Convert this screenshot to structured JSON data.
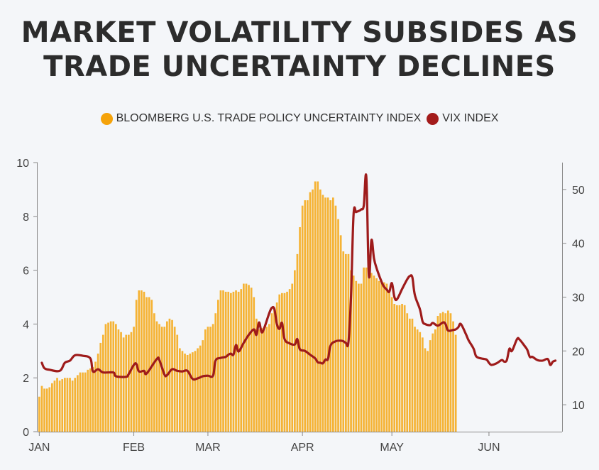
{
  "title": {
    "line1": "MARKET VOLATILITY SUBSIDES AS",
    "line2": "TRADE UNCERTAINTY DECLINES"
  },
  "colors": {
    "bars": "#f5b335",
    "line": "#9e1b1b",
    "legend_bar_dot": "#f5a30a",
    "legend_line_dot": "#a31b1b"
  },
  "chart_data": {
    "type": "bar+line",
    "legend_position": "top-center",
    "x_tick_labels": [
      "JAN",
      "FEB",
      "MAR",
      "APR",
      "MAY",
      "JUN"
    ],
    "x_tick_index": [
      0,
      37,
      66,
      103,
      138,
      176
    ],
    "left_axis": {
      "ylim": [
        0,
        10
      ],
      "ticks": [
        0,
        2,
        4,
        6,
        8,
        10
      ]
    },
    "right_axis": {
      "ylim": [
        5,
        55
      ],
      "ticks": [
        10,
        20,
        30,
        40,
        50
      ]
    },
    "series": [
      {
        "name": "BLOOMBERG U.S. TRADE POLICY UNCERTAINTY INDEX",
        "type": "bar",
        "axis": "left",
        "values": [
          1.3,
          1.7,
          1.6,
          1.6,
          1.65,
          1.8,
          1.9,
          2.0,
          1.9,
          1.95,
          2.0,
          2.0,
          2.0,
          1.9,
          2.0,
          2.1,
          2.2,
          2.2,
          2.2,
          2.3,
          2.35,
          2.4,
          2.6,
          2.9,
          3.3,
          3.6,
          4.0,
          4.05,
          4.1,
          4.1,
          4.0,
          3.8,
          3.7,
          3.5,
          3.6,
          3.6,
          3.7,
          3.9,
          4.9,
          5.25,
          5.25,
          5.2,
          5.0,
          5.0,
          4.9,
          4.4,
          4.1,
          4.0,
          3.9,
          3.9,
          4.1,
          4.2,
          4.15,
          3.9,
          3.6,
          3.1,
          3.0,
          2.9,
          2.85,
          2.9,
          2.95,
          3.0,
          3.1,
          3.2,
          3.4,
          3.8,
          3.9,
          3.9,
          4.0,
          4.4,
          4.9,
          5.25,
          5.25,
          5.2,
          5.2,
          5.15,
          5.2,
          5.25,
          5.2,
          5.3,
          5.5,
          5.5,
          5.45,
          5.35,
          5.0,
          4.2,
          3.8,
          3.85,
          3.9,
          3.9,
          4.0,
          4.4,
          4.6,
          4.8,
          5.1,
          5.15,
          5.15,
          5.2,
          5.3,
          5.5,
          6.0,
          6.6,
          7.6,
          8.4,
          8.6,
          8.6,
          8.9,
          9.0,
          9.3,
          9.3,
          9.0,
          8.8,
          8.7,
          8.7,
          8.6,
          8.7,
          8.4,
          7.9,
          7.3,
          6.7,
          6.6,
          6.6,
          6.0,
          5.8,
          5.6,
          5.5,
          5.5,
          6.1,
          6.1,
          6.1,
          5.9,
          5.8,
          5.7,
          5.6,
          5.55,
          5.55,
          5.5,
          5.2,
          5.0,
          4.75,
          4.7,
          4.7,
          4.75,
          4.7,
          4.4,
          4.2,
          4.2,
          3.9,
          3.8,
          3.7,
          3.5,
          3.1,
          3.0,
          3.4,
          3.65,
          3.8,
          4.3,
          4.4,
          4.45,
          4.4,
          4.5,
          4.4,
          4.1,
          3.6
        ]
      },
      {
        "name": "VIX INDEX",
        "type": "line",
        "axis": "right",
        "points": [
          [
            1,
            17.8
          ],
          [
            2,
            16.8
          ],
          [
            4,
            16.5
          ],
          [
            8,
            16.3
          ],
          [
            10,
            17.8
          ],
          [
            12,
            18.2
          ],
          [
            14,
            19.2
          ],
          [
            17,
            19.1
          ],
          [
            20,
            18.6
          ],
          [
            21,
            16.2
          ],
          [
            23,
            16.6
          ],
          [
            25,
            16.0
          ],
          [
            29,
            16.0
          ],
          [
            30,
            15.3
          ],
          [
            34,
            15.2
          ],
          [
            35,
            15.7
          ],
          [
            37,
            17.4
          ],
          [
            38,
            17.6
          ],
          [
            39,
            16.2
          ],
          [
            41,
            16.3
          ],
          [
            42,
            15.8
          ],
          [
            46,
            18.5
          ],
          [
            47,
            18.3
          ],
          [
            49,
            15.6
          ],
          [
            50,
            15.5
          ],
          [
            52,
            16.6
          ],
          [
            54,
            16.3
          ],
          [
            56,
            16.2
          ],
          [
            58,
            16.3
          ],
          [
            60,
            14.8
          ],
          [
            62,
            14.9
          ],
          [
            64,
            15.3
          ],
          [
            66,
            15.4
          ],
          [
            68,
            15.4
          ],
          [
            69,
            18.2
          ],
          [
            71,
            18.7
          ],
          [
            73,
            18.9
          ],
          [
            74,
            19.3
          ],
          [
            75,
            19.5
          ],
          [
            76,
            19.3
          ],
          [
            77,
            21.1
          ],
          [
            78,
            19.9
          ],
          [
            80,
            21.5
          ],
          [
            82,
            23.0
          ],
          [
            84,
            24.0
          ],
          [
            85,
            23.0
          ],
          [
            86,
            25.3
          ],
          [
            87,
            23.5
          ],
          [
            88,
            24.2
          ],
          [
            90,
            27.0
          ],
          [
            91,
            28.0
          ],
          [
            92,
            27.8
          ],
          [
            93,
            25.0
          ],
          [
            94,
            24.1
          ],
          [
            95,
            25.2
          ],
          [
            96,
            22.2
          ],
          [
            98,
            21.4
          ],
          [
            100,
            21.2
          ],
          [
            101,
            22.2
          ],
          [
            102,
            20.3
          ],
          [
            104,
            20.0
          ],
          [
            106,
            19.3
          ],
          [
            108,
            18.6
          ],
          [
            109,
            17.9
          ],
          [
            110,
            17.8
          ],
          [
            111,
            17.7
          ],
          [
            112,
            18.4
          ],
          [
            113,
            18.5
          ],
          [
            114,
            21.0
          ],
          [
            116,
            21.8
          ],
          [
            118,
            21.9
          ],
          [
            119,
            21.8
          ],
          [
            120,
            21.5
          ],
          [
            121,
            21.6
          ],
          [
            122,
            30.0
          ],
          [
            123,
            45.3
          ],
          [
            124,
            45.8
          ],
          [
            125,
            46.0
          ],
          [
            126,
            46.3
          ],
          [
            127,
            47.0
          ],
          [
            128,
            52.3
          ],
          [
            129,
            34.0
          ],
          [
            130,
            40.6
          ],
          [
            131,
            37.2
          ],
          [
            132,
            35.4
          ],
          [
            134,
            32.8
          ],
          [
            135,
            31.9
          ],
          [
            136,
            31.4
          ],
          [
            137,
            31.0
          ],
          [
            138,
            32.6
          ],
          [
            139,
            30.0
          ],
          [
            140,
            29.6
          ],
          [
            142,
            31.5
          ],
          [
            144,
            33.3
          ],
          [
            145,
            33.9
          ],
          [
            146,
            33.7
          ],
          [
            147,
            30.4
          ],
          [
            149,
            27.7
          ],
          [
            150,
            25.5
          ],
          [
            151,
            25.0
          ],
          [
            153,
            24.8
          ],
          [
            154,
            25.2
          ],
          [
            156,
            24.7
          ],
          [
            158,
            25.3
          ],
          [
            159,
            25.0
          ],
          [
            160,
            23.8
          ],
          [
            162,
            23.9
          ],
          [
            163,
            24.0
          ],
          [
            164,
            24.4
          ],
          [
            165,
            25.0
          ],
          [
            167,
            23.1
          ],
          [
            168,
            22.0
          ],
          [
            170,
            20.4
          ],
          [
            171,
            19.0
          ],
          [
            173,
            18.6
          ],
          [
            175,
            18.4
          ],
          [
            176,
            17.8
          ],
          [
            177,
            17.4
          ],
          [
            179,
            17.7
          ],
          [
            181,
            18.3
          ],
          [
            182,
            18.0
          ],
          [
            183,
            18.3
          ],
          [
            184,
            20.4
          ],
          [
            185,
            20.0
          ],
          [
            187,
            22.2
          ],
          [
            188,
            22.1
          ],
          [
            190,
            20.9
          ],
          [
            191,
            20.2
          ],
          [
            192,
            18.9
          ],
          [
            193,
            18.9
          ],
          [
            195,
            18.3
          ],
          [
            197,
            18.2
          ],
          [
            199,
            18.5
          ],
          [
            200,
            17.4
          ],
          [
            201,
            18.0
          ],
          [
            202,
            18.2
          ]
        ]
      }
    ]
  }
}
